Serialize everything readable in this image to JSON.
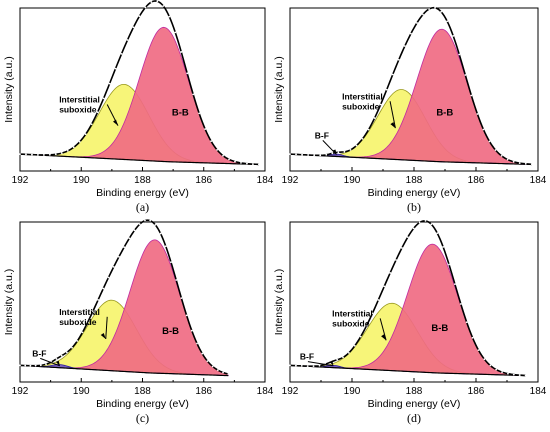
{
  "chart_data": [
    {
      "type": "area",
      "panel_label": "(a)",
      "xlabel": "Binding energy (eV)",
      "ylabel": "Intensity (a.u.)",
      "xlim": [
        192,
        184
      ],
      "x_reversed": true,
      "xticks": [
        "192",
        "190",
        "188",
        "186",
        "184"
      ],
      "grid": false,
      "components": [
        {
          "label": "B-B",
          "center_eV": 187.3,
          "height": 0.84,
          "fwhm_eV": 1.9,
          "color": "#f06b83"
        },
        {
          "label": "Interstitial suboxide",
          "center_eV": 188.6,
          "height": 0.47,
          "fwhm_eV": 1.9,
          "color": "#f6f46a"
        }
      ],
      "annotations": [
        "Interstitial suboxide",
        "B-B"
      ],
      "data_range_eV": [
        192,
        184.2
      ]
    },
    {
      "type": "area",
      "panel_label": "(b)",
      "xlabel": "Binding energy (eV)",
      "ylabel": "Intensity (a.u.)",
      "xlim": [
        192,
        184
      ],
      "x_reversed": true,
      "xticks": [
        "192",
        "190",
        "188",
        "186",
        "184"
      ],
      "grid": false,
      "components": [
        {
          "label": "B-B",
          "center_eV": 187.1,
          "height": 0.83,
          "fwhm_eV": 1.9,
          "color": "#f06b83"
        },
        {
          "label": "Interstitial suboxide",
          "center_eV": 188.4,
          "height": 0.44,
          "fwhm_eV": 1.8,
          "color": "#f6f46a"
        },
        {
          "label": "B-F",
          "center_eV": 190.5,
          "height": 0.015,
          "fwhm_eV": 0.5,
          "color": "#6a4fc4"
        }
      ],
      "annotations": [
        "Interstitial suboxide",
        "B-B",
        "B-F"
      ],
      "data_range_eV": [
        192,
        184.2
      ]
    },
    {
      "type": "area",
      "panel_label": "(c)",
      "xlabel": "Binding energy (eV)",
      "ylabel": "Intensity (a.u.)",
      "xlim": [
        192,
        184
      ],
      "x_reversed": true,
      "xticks": [
        "192",
        "190",
        "188",
        "186",
        "184"
      ],
      "grid": false,
      "components": [
        {
          "label": "B-B",
          "center_eV": 187.6,
          "height": 0.85,
          "fwhm_eV": 1.9,
          "color": "#f06b83"
        },
        {
          "label": "Interstitial suboxide",
          "center_eV": 189.0,
          "height": 0.45,
          "fwhm_eV": 1.9,
          "color": "#f6f46a"
        },
        {
          "label": "B-F",
          "center_eV": 190.7,
          "height": 0.02,
          "fwhm_eV": 0.6,
          "color": "#6a4fc4"
        }
      ],
      "annotations": [
        "Interstitial suboxide",
        "B-B",
        "B-F"
      ],
      "data_range_eV": [
        192,
        185.2
      ]
    },
    {
      "type": "area",
      "panel_label": "(d)",
      "xlabel": "Binding energy (eV)",
      "ylabel": "Intensity (a.u.)",
      "xlim": [
        192,
        184
      ],
      "x_reversed": true,
      "xticks": [
        "192",
        "190",
        "188",
        "186",
        "184"
      ],
      "grid": false,
      "components": [
        {
          "label": "B-B",
          "center_eV": 187.4,
          "height": 0.82,
          "fwhm_eV": 1.9,
          "color": "#f06b83"
        },
        {
          "label": "Interstitial suboxide",
          "center_eV": 188.7,
          "height": 0.43,
          "fwhm_eV": 1.9,
          "color": "#f6f46a"
        },
        {
          "label": "B-F",
          "center_eV": 190.6,
          "height": 0.015,
          "fwhm_eV": 0.5,
          "color": "#6a4fc4"
        }
      ],
      "annotations": [
        "Interstitial suboxide",
        "B-B",
        "B-F"
      ],
      "data_range_eV": [
        192,
        184.4
      ]
    }
  ]
}
